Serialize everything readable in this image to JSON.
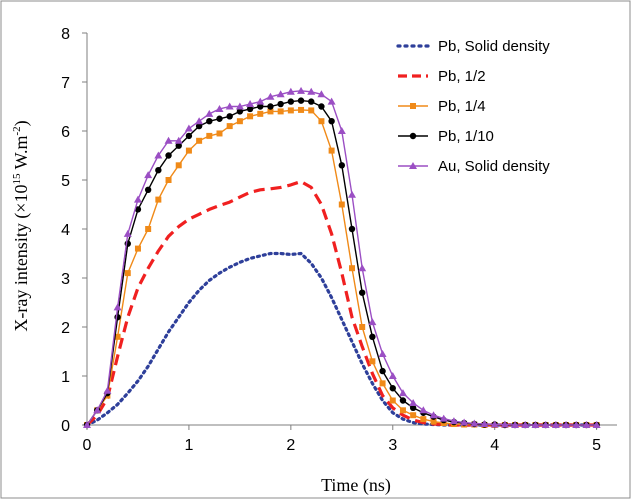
{
  "chart_data": {
    "type": "line",
    "xlabel": "Time (ns)",
    "ylabel_main": "X-ray  intensity  (×10",
    "ylabel_exp": "15",
    "ylabel_unit": " W.m",
    "ylabel_unit_exp": "-2",
    "ylabel_close": ")",
    "xlim": [
      0,
      5.2
    ],
    "ylim": [
      0,
      8
    ],
    "xticks": [
      "0",
      "1",
      "2",
      "3",
      "4",
      "5"
    ],
    "yticks": [
      "0",
      "1",
      "2",
      "3",
      "4",
      "5",
      "6",
      "7",
      "8"
    ],
    "legend_position": "top-right",
    "grid": false,
    "series": [
      {
        "name": "Pb, Solid density",
        "color": "#2e3f9a",
        "style": "dotted",
        "marker": "none",
        "x": [
          0,
          0.1,
          0.2,
          0.3,
          0.4,
          0.5,
          0.6,
          0.7,
          0.8,
          0.9,
          1.0,
          1.1,
          1.2,
          1.3,
          1.4,
          1.5,
          1.6,
          1.7,
          1.8,
          1.9,
          2.0,
          2.1,
          2.2,
          2.3,
          2.4,
          2.5,
          2.6,
          2.7,
          2.8,
          2.9,
          3.0,
          3.1,
          3.2,
          3.3,
          3.4,
          3.5,
          3.6,
          3.8,
          4.0,
          4.2,
          4.4,
          4.6,
          4.8,
          5.0
        ],
        "y": [
          0,
          0.1,
          0.25,
          0.42,
          0.65,
          0.9,
          1.2,
          1.55,
          1.9,
          2.2,
          2.5,
          2.75,
          2.95,
          3.1,
          3.22,
          3.32,
          3.4,
          3.45,
          3.5,
          3.5,
          3.48,
          3.5,
          3.3,
          3.0,
          2.6,
          2.15,
          1.7,
          1.25,
          0.85,
          0.5,
          0.25,
          0.12,
          0.05,
          0.02,
          0.01,
          0,
          0,
          0,
          0,
          0,
          0,
          0,
          0,
          0
        ]
      },
      {
        "name": "Pb, 1/2",
        "color": "#f02020",
        "style": "dashed",
        "marker": "none",
        "x": [
          0,
          0.1,
          0.2,
          0.3,
          0.4,
          0.5,
          0.6,
          0.7,
          0.8,
          0.9,
          1.0,
          1.1,
          1.2,
          1.3,
          1.4,
          1.5,
          1.6,
          1.7,
          1.8,
          1.9,
          2.0,
          2.1,
          2.2,
          2.3,
          2.4,
          2.5,
          2.6,
          2.7,
          2.8,
          2.9,
          3.0,
          3.1,
          3.2,
          3.3,
          3.4,
          3.5,
          3.6,
          3.8,
          4.0,
          4.2,
          4.4,
          4.6,
          4.8,
          5.0
        ],
        "y": [
          0,
          0.2,
          0.55,
          1.4,
          2.2,
          2.8,
          3.2,
          3.55,
          3.85,
          4.05,
          4.2,
          4.3,
          4.4,
          4.48,
          4.55,
          4.65,
          4.75,
          4.8,
          4.82,
          4.85,
          4.9,
          4.97,
          4.85,
          4.5,
          3.9,
          3.1,
          2.2,
          1.6,
          1.05,
          0.6,
          0.35,
          0.2,
          0.1,
          0.05,
          0.02,
          0.01,
          0,
          0,
          0,
          0,
          0,
          0,
          0,
          0
        ]
      },
      {
        "name": "Pb, 1/4",
        "color": "#f08a18",
        "style": "solid",
        "marker": "square",
        "x": [
          0,
          0.1,
          0.2,
          0.3,
          0.4,
          0.5,
          0.6,
          0.7,
          0.8,
          0.9,
          1.0,
          1.1,
          1.2,
          1.3,
          1.4,
          1.5,
          1.6,
          1.7,
          1.8,
          1.9,
          2.0,
          2.1,
          2.2,
          2.3,
          2.4,
          2.5,
          2.6,
          2.7,
          2.8,
          2.9,
          3.0,
          3.1,
          3.2,
          3.3,
          3.4,
          3.5,
          3.6,
          3.7,
          3.8,
          3.9,
          4.0,
          4.1,
          4.2,
          4.3,
          4.4,
          4.5,
          4.6,
          4.7,
          4.8,
          4.9,
          5.0
        ],
        "y": [
          0,
          0.3,
          0.6,
          1.8,
          3.1,
          3.6,
          4.0,
          4.6,
          5.0,
          5.3,
          5.6,
          5.8,
          5.9,
          5.95,
          6.1,
          6.2,
          6.3,
          6.35,
          6.4,
          6.4,
          6.42,
          6.43,
          6.42,
          6.2,
          5.6,
          4.5,
          3.2,
          2.0,
          1.3,
          0.85,
          0.5,
          0.3,
          0.2,
          0.12,
          0.07,
          0.04,
          0.02,
          0.01,
          0.01,
          0,
          0,
          0,
          0,
          0,
          0,
          0,
          0,
          0,
          0,
          0,
          0
        ]
      },
      {
        "name": "Pb, 1/10",
        "color": "#000000",
        "style": "solid",
        "marker": "circle",
        "x": [
          0,
          0.1,
          0.2,
          0.3,
          0.4,
          0.5,
          0.6,
          0.7,
          0.8,
          0.9,
          1.0,
          1.1,
          1.2,
          1.3,
          1.4,
          1.5,
          1.6,
          1.7,
          1.8,
          1.9,
          2.0,
          2.1,
          2.2,
          2.3,
          2.4,
          2.5,
          2.6,
          2.7,
          2.8,
          2.9,
          3.0,
          3.1,
          3.2,
          3.3,
          3.4,
          3.5,
          3.6,
          3.7,
          3.8,
          3.9,
          4.0,
          4.1,
          4.2,
          4.3,
          4.4,
          4.5,
          4.6,
          4.7,
          4.8,
          4.9,
          5.0
        ],
        "y": [
          0,
          0.3,
          0.65,
          2.2,
          3.7,
          4.4,
          4.8,
          5.2,
          5.5,
          5.7,
          5.9,
          6.1,
          6.2,
          6.25,
          6.3,
          6.4,
          6.45,
          6.5,
          6.5,
          6.55,
          6.6,
          6.62,
          6.6,
          6.5,
          6.2,
          5.3,
          4.0,
          2.7,
          1.8,
          1.1,
          0.75,
          0.5,
          0.35,
          0.25,
          0.17,
          0.1,
          0.06,
          0.04,
          0.02,
          0.01,
          0.01,
          0,
          0,
          0,
          0,
          0,
          0,
          0,
          0,
          0,
          0
        ]
      },
      {
        "name": "Au, Solid density",
        "color": "#9b4fc4",
        "style": "solid",
        "marker": "triangle",
        "x": [
          0,
          0.1,
          0.2,
          0.3,
          0.4,
          0.5,
          0.6,
          0.7,
          0.8,
          0.9,
          1.0,
          1.1,
          1.2,
          1.3,
          1.4,
          1.5,
          1.6,
          1.7,
          1.8,
          1.9,
          2.0,
          2.1,
          2.2,
          2.3,
          2.4,
          2.5,
          2.6,
          2.7,
          2.8,
          2.9,
          3.0,
          3.1,
          3.2,
          3.3,
          3.4,
          3.5,
          3.6,
          3.7,
          3.8,
          3.9,
          4.0,
          4.1,
          4.2,
          4.3,
          4.4,
          4.5,
          4.6,
          4.7,
          4.8,
          4.9,
          5.0
        ],
        "y": [
          0,
          0.3,
          0.7,
          2.4,
          3.9,
          4.6,
          5.1,
          5.5,
          5.8,
          5.8,
          6.05,
          6.2,
          6.35,
          6.45,
          6.5,
          6.5,
          6.55,
          6.6,
          6.7,
          6.75,
          6.8,
          6.82,
          6.8,
          6.75,
          6.6,
          6.0,
          4.7,
          3.2,
          2.1,
          1.45,
          1.0,
          0.65,
          0.45,
          0.3,
          0.2,
          0.13,
          0.08,
          0.05,
          0.03,
          0.02,
          0.01,
          0.01,
          0,
          0,
          0,
          0,
          0,
          0,
          0,
          0,
          0
        ]
      }
    ]
  }
}
